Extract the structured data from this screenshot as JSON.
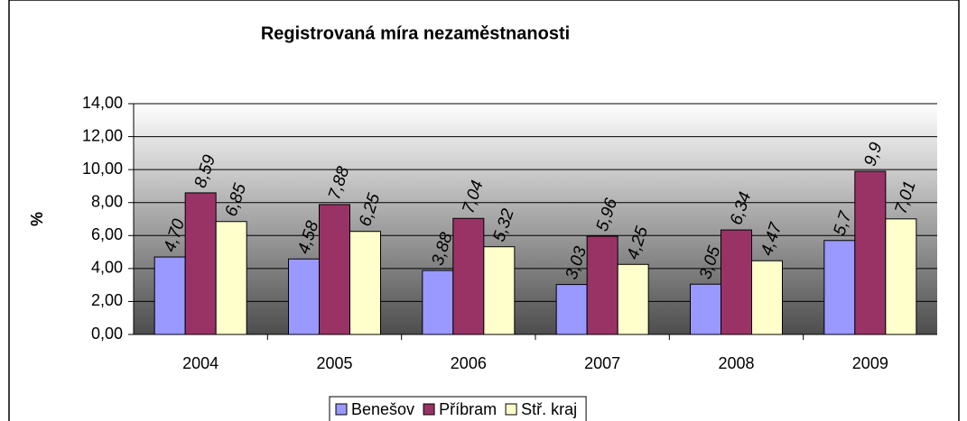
{
  "chart_data": {
    "type": "bar",
    "title": "Registrovaná míra nezaměstnanosti",
    "y_label": "%",
    "categories": [
      "2004",
      "2005",
      "2006",
      "2007",
      "2008",
      "2009"
    ],
    "series": [
      {
        "name": "Benešov",
        "color": "#9999ff",
        "values": [
          4.7,
          4.58,
          3.88,
          3.03,
          3.05,
          5.7
        ],
        "value_labels": [
          "4,70",
          "4,58",
          "3,88",
          "3,03",
          "3,05",
          "5,7"
        ]
      },
      {
        "name": "Příbram",
        "color": "#993366",
        "values": [
          8.59,
          7.88,
          7.04,
          5.96,
          6.34,
          9.9
        ],
        "value_labels": [
          "8,59",
          "7,88",
          "7,04",
          "5,96",
          "6,34",
          "9,9"
        ]
      },
      {
        "name": "Stř. kraj",
        "color": "#ffffcc",
        "values": [
          6.85,
          6.25,
          5.32,
          4.25,
          4.47,
          7.01
        ],
        "value_labels": [
          "6,85",
          "6,25",
          "5,32",
          "4,25",
          "4,47",
          "7,01"
        ]
      }
    ],
    "ylim": [
      0,
      14
    ],
    "yticks": [
      {
        "value": 0,
        "label": "0,00"
      },
      {
        "value": 2,
        "label": "2,00"
      },
      {
        "value": 4,
        "label": "4,00"
      },
      {
        "value": 6,
        "label": "6,00"
      },
      {
        "value": 8,
        "label": "8,00"
      },
      {
        "value": 10,
        "label": "10,00"
      },
      {
        "value": 12,
        "label": "12,00"
      },
      {
        "value": 14,
        "label": "14,00"
      }
    ],
    "grid": true,
    "legend": "bottom"
  }
}
